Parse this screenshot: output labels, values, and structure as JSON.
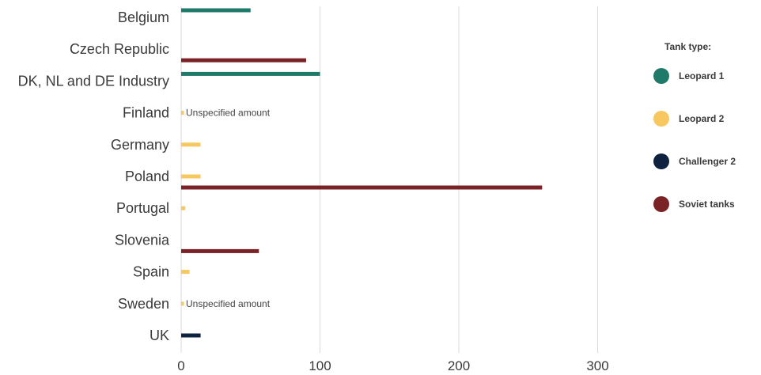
{
  "chart_data": {
    "type": "bar",
    "orientation": "horizontal",
    "categories": [
      "Belgium",
      "Czech Republic",
      "DK, NL and DE Industry",
      "Finland",
      "Germany",
      "Poland",
      "Portugal",
      "Slovenia",
      "Spain",
      "Sweden",
      "UK"
    ],
    "series": [
      {
        "name": "Leopard 1",
        "color": "#1f7a69",
        "values": [
          50,
          0,
          100,
          0,
          0,
          0,
          0,
          0,
          0,
          0,
          0
        ]
      },
      {
        "name": "Leopard 2",
        "color": "#f6c85f",
        "values": [
          0,
          0,
          0,
          2,
          14,
          14,
          3,
          0,
          6,
          2,
          0
        ]
      },
      {
        "name": "Challenger 2",
        "color": "#0e2240",
        "values": [
          0,
          0,
          0,
          0,
          0,
          0,
          0,
          0,
          0,
          0,
          14
        ]
      },
      {
        "name": "Soviet tanks",
        "color": "#7a2226",
        "values": [
          0,
          90,
          0,
          0,
          0,
          260,
          0,
          56,
          0,
          0,
          0
        ]
      }
    ],
    "xlim": [
      0,
      350
    ],
    "xticks": [
      "0",
      "100",
      "200",
      "300"
    ],
    "grid": true,
    "legend_title": "Tank type:",
    "legend_position": "right",
    "annotations": [
      {
        "category": "Finland",
        "text": "Unspecified amount"
      },
      {
        "category": "Sweden",
        "text": "Unspecified amount"
      }
    ]
  }
}
